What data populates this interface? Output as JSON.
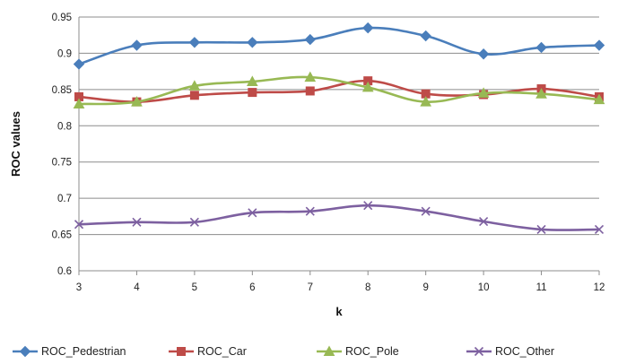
{
  "chart_data": {
    "type": "line",
    "title": "",
    "xlabel": "k",
    "ylabel": "ROC values",
    "x": [
      3,
      4,
      5,
      6,
      7,
      8,
      9,
      10,
      11,
      12
    ],
    "ylim": [
      0.6,
      0.95
    ],
    "yticks": [
      "0.6",
      "0.65",
      "0.7",
      "0.75",
      "0.8",
      "0.85",
      "0.9",
      "0.95"
    ],
    "grid": "horizontal",
    "legend_position": "bottom",
    "series": [
      {
        "name": "ROC_Pedestrian",
        "color": "#4A7EBB",
        "marker": "diamond",
        "values": [
          0.885,
          0.911,
          0.915,
          0.915,
          0.919,
          0.935,
          0.924,
          0.899,
          0.908,
          0.911
        ]
      },
      {
        "name": "ROC_Car",
        "color": "#BE4B48",
        "marker": "square",
        "values": [
          0.84,
          0.833,
          0.842,
          0.846,
          0.848,
          0.862,
          0.844,
          0.843,
          0.851,
          0.84
        ]
      },
      {
        "name": "ROC_Pole",
        "color": "#98B954",
        "marker": "triangle",
        "values": [
          0.83,
          0.833,
          0.855,
          0.861,
          0.867,
          0.853,
          0.833,
          0.845,
          0.844,
          0.836
        ]
      },
      {
        "name": "ROC_Other",
        "color": "#7D60A0",
        "marker": "x",
        "values": [
          0.664,
          0.667,
          0.667,
          0.68,
          0.682,
          0.69,
          0.682,
          0.668,
          0.657,
          0.657
        ]
      }
    ]
  }
}
